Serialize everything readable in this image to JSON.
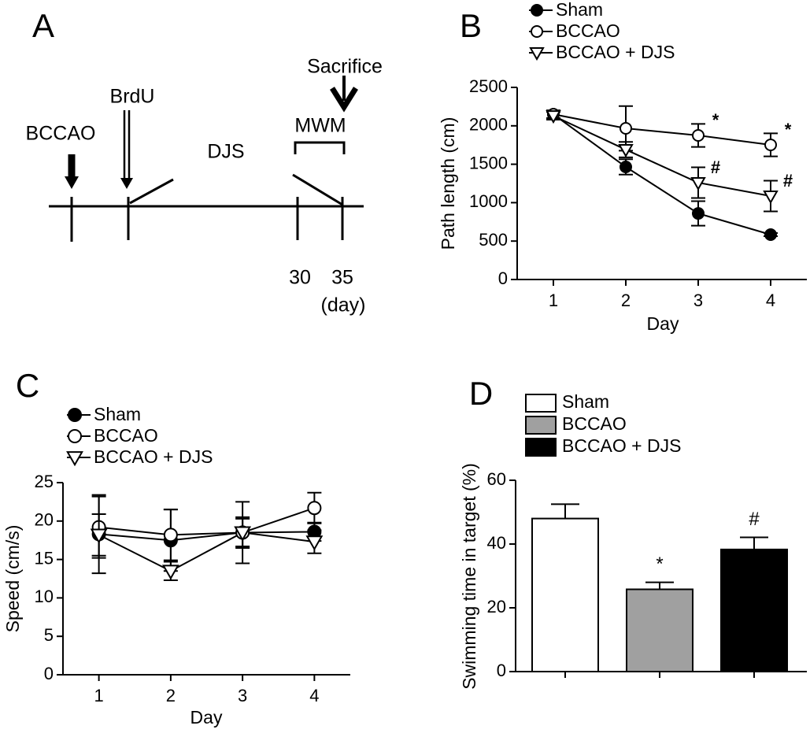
{
  "timeline": {
    "panel": "A",
    "events": [
      "BCCAO",
      "BrdU",
      "DJS",
      "MWM",
      "Sacrifice"
    ],
    "ticks": [
      30,
      35
    ],
    "unit": "(day)"
  },
  "chart_data": [
    {
      "type": "line",
      "panel": "B",
      "x_label": "Day",
      "y_label": "Path length (cm)",
      "x": [
        1,
        2,
        3,
        4
      ],
      "xlim": [
        0.5,
        4.5
      ],
      "xticks": [
        1,
        2,
        3,
        4
      ],
      "ylim": [
        0,
        2500
      ],
      "yticks": [
        0,
        500,
        1000,
        1500,
        2000,
        2500
      ],
      "legend": "top",
      "series": [
        {
          "name": "Sham",
          "color": "#000000",
          "marker": "filled-circle",
          "values": [
            2150,
            1465,
            860,
            584
          ],
          "errors": [
            50,
            100,
            160,
            20
          ],
          "significance": [
            null,
            null,
            null,
            null
          ]
        },
        {
          "name": "BCCAO",
          "color": "#000000",
          "marker": "open-circle",
          "values": [
            2150,
            1967,
            1875,
            1752
          ],
          "errors": [
            50,
            290,
            150,
            150
          ],
          "significance": [
            null,
            null,
            "*",
            "*"
          ]
        },
        {
          "name": "BCCAO + DJS",
          "color": "#000000",
          "marker": "open-triangle-down",
          "values": [
            2130,
            1690,
            1260,
            1086
          ],
          "errors": [
            50,
            100,
            200,
            200
          ],
          "significance": [
            null,
            null,
            "#",
            "#"
          ]
        }
      ]
    },
    {
      "type": "line",
      "panel": "C",
      "x_label": "Day",
      "y_label": "Speed (cm/s)",
      "x": [
        1,
        2,
        3,
        4
      ],
      "xlim": [
        0.5,
        4.5
      ],
      "xticks": [
        1,
        2,
        3,
        4
      ],
      "ylim": [
        0,
        25
      ],
      "yticks": [
        0,
        5,
        10,
        15,
        20,
        25
      ],
      "legend": "upper left",
      "series": [
        {
          "name": "Sham",
          "color": "#000000",
          "marker": "filled-circle",
          "values": [
            18.3,
            17.5,
            18.5,
            18.6
          ],
          "errors": [
            5.1,
            4,
            4,
            1.2
          ],
          "significance": [
            null,
            null,
            null,
            null
          ]
        },
        {
          "name": "BCCAO",
          "color": "#000000",
          "marker": "open-circle",
          "values": [
            19.2,
            18.2,
            18.5,
            21.7
          ],
          "errors": [
            4,
            3.3,
            1.8,
            2
          ],
          "significance": [
            null,
            null,
            null,
            null
          ]
        },
        {
          "name": "BCCAO + DJS",
          "color": "#000000",
          "marker": "open-triangle-down",
          "values": [
            18.2,
            13.5,
            18.5,
            17.3
          ],
          "errors": [
            2.7,
            1.2,
            2,
            1.5
          ],
          "significance": [
            null,
            null,
            null,
            null
          ]
        }
      ]
    },
    {
      "type": "bar",
      "panel": "D",
      "y_label": "Swimming time in target (%)",
      "categories": [
        "Sham",
        "BCCAO",
        "BCCAO + DJS"
      ],
      "colors": [
        "#ffffff",
        "#a0a0a0",
        "#000000"
      ],
      "values": [
        48,
        25.8,
        38.3
      ],
      "errors": [
        4.5,
        2.2,
        3.8
      ],
      "significance": [
        null,
        "*",
        "#"
      ],
      "ylim": [
        0,
        60
      ],
      "yticks": [
        0,
        20,
        40,
        60
      ],
      "legend": "top"
    }
  ]
}
